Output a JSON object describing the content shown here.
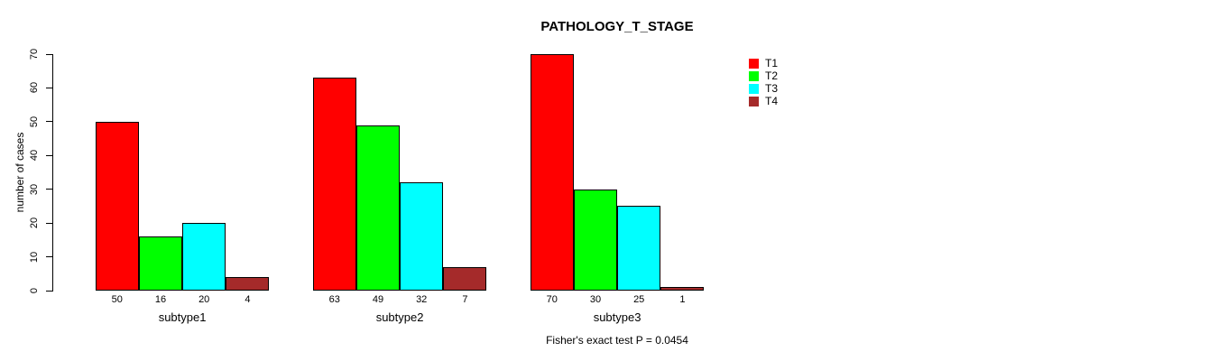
{
  "chart_data": {
    "type": "bar",
    "title": "PATHOLOGY_T_STAGE",
    "ylabel": "number of cases",
    "xlabel": "",
    "categories": [
      "subtype1",
      "subtype2",
      "subtype3"
    ],
    "series": [
      {
        "name": "T1",
        "color": "#ff0000",
        "values": [
          50,
          63,
          70
        ]
      },
      {
        "name": "T2",
        "color": "#00ff00",
        "values": [
          16,
          49,
          30
        ]
      },
      {
        "name": "T3",
        "color": "#00ffff",
        "values": [
          20,
          32,
          25
        ]
      },
      {
        "name": "T4",
        "color": "#a52a2a",
        "values": [
          4,
          7,
          1
        ]
      }
    ],
    "ylim": [
      0,
      70
    ],
    "yticks": [
      0,
      10,
      20,
      30,
      40,
      50,
      60,
      70
    ],
    "value_labels_shown": true,
    "grid": false,
    "legend_position": "right",
    "legend_entries": [
      "T1",
      "T2",
      "T3",
      "T4"
    ],
    "annotation": "Fisher's exact test P = 0.0454",
    "background_color": "#ffffff",
    "text_color": "#000000"
  }
}
